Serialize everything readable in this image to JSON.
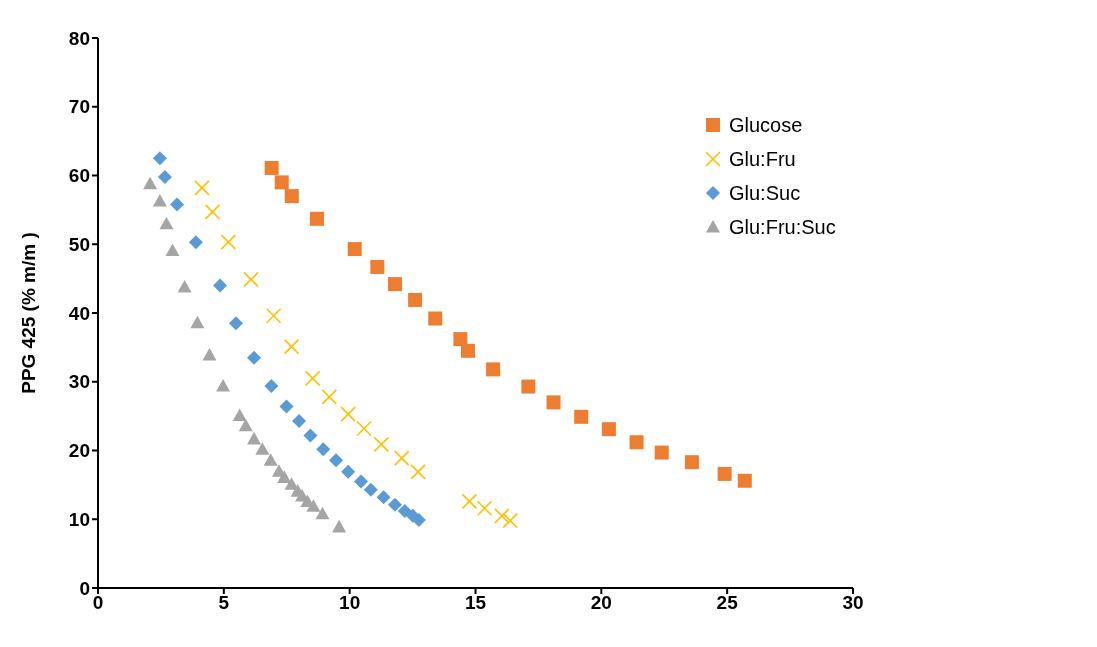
{
  "chart_data": {
    "type": "scatter",
    "ylabel": "PPG 425 (% m/m )",
    "xlim": [
      0,
      30
    ],
    "xticks": [
      0,
      5,
      10,
      15,
      20,
      25,
      30
    ],
    "ylim": [
      0,
      80
    ],
    "yticks": [
      0,
      10,
      20,
      30,
      40,
      50,
      60,
      70,
      80
    ],
    "grid": false,
    "legend": "top right",
    "series": [
      {
        "name": "Glucose",
        "color": "#ed7d31",
        "marker": "square",
        "x": [
          6.9,
          7.3,
          7.7,
          8.7,
          10.2,
          11.1,
          11.8,
          12.6,
          13.4,
          14.4,
          14.7,
          15.7,
          17.1,
          18.1,
          19.2,
          20.3,
          21.4,
          22.4,
          23.6,
          24.9,
          25.7
        ],
        "values": [
          61.1,
          59.0,
          57.0,
          53.7,
          49.3,
          46.7,
          44.2,
          41.9,
          39.2,
          36.2,
          34.5,
          31.8,
          29.3,
          27.0,
          24.9,
          23.1,
          21.2,
          19.7,
          18.3,
          16.6,
          15.6
        ]
      },
      {
        "name": "Glu:Fru",
        "color": "#ffc000",
        "marker": "cross",
        "x": [
          4.13,
          4.55,
          5.18,
          6.08,
          6.98,
          7.69,
          8.53,
          9.19,
          9.94,
          10.57,
          11.26,
          12.07,
          12.72,
          14.76,
          15.36,
          16.05,
          16.38
        ],
        "values": [
          58.2,
          54.7,
          50.3,
          44.9,
          39.6,
          35.1,
          30.5,
          27.8,
          25.3,
          23.2,
          20.9,
          18.9,
          16.9,
          12.6,
          11.6,
          10.5,
          9.8
        ]
      },
      {
        "name": "Glu:Suc",
        "color": "#5b9bd5",
        "marker": "diamond",
        "x": [
          2.46,
          2.66,
          3.14,
          3.89,
          4.85,
          5.48,
          6.2,
          6.89,
          7.49,
          7.99,
          8.44,
          8.95,
          9.46,
          9.94,
          10.45,
          10.84,
          11.35,
          11.8,
          12.19,
          12.51,
          12.75
        ],
        "values": [
          62.5,
          59.8,
          55.8,
          50.3,
          44.0,
          38.5,
          33.5,
          29.4,
          26.4,
          24.3,
          22.2,
          20.2,
          18.6,
          16.9,
          15.5,
          14.3,
          13.2,
          12.1,
          11.2,
          10.5,
          9.9
        ]
      },
      {
        "name": "Glu:Fru:Suc",
        "color": "#a5a5a5",
        "marker": "triangle",
        "x": [
          2.07,
          2.46,
          2.72,
          2.96,
          3.44,
          3.95,
          4.43,
          4.97,
          5.63,
          5.87,
          6.2,
          6.53,
          6.86,
          7.19,
          7.4,
          7.69,
          7.93,
          8.11,
          8.32,
          8.56,
          8.92,
          9.58
        ],
        "values": [
          58.8,
          56.3,
          53.0,
          49.1,
          43.8,
          38.6,
          33.9,
          29.4,
          25.1,
          23.6,
          21.7,
          20.2,
          18.6,
          17.0,
          16.1,
          15.1,
          14.1,
          13.4,
          12.6,
          11.9,
          10.8,
          8.9
        ]
      }
    ]
  }
}
